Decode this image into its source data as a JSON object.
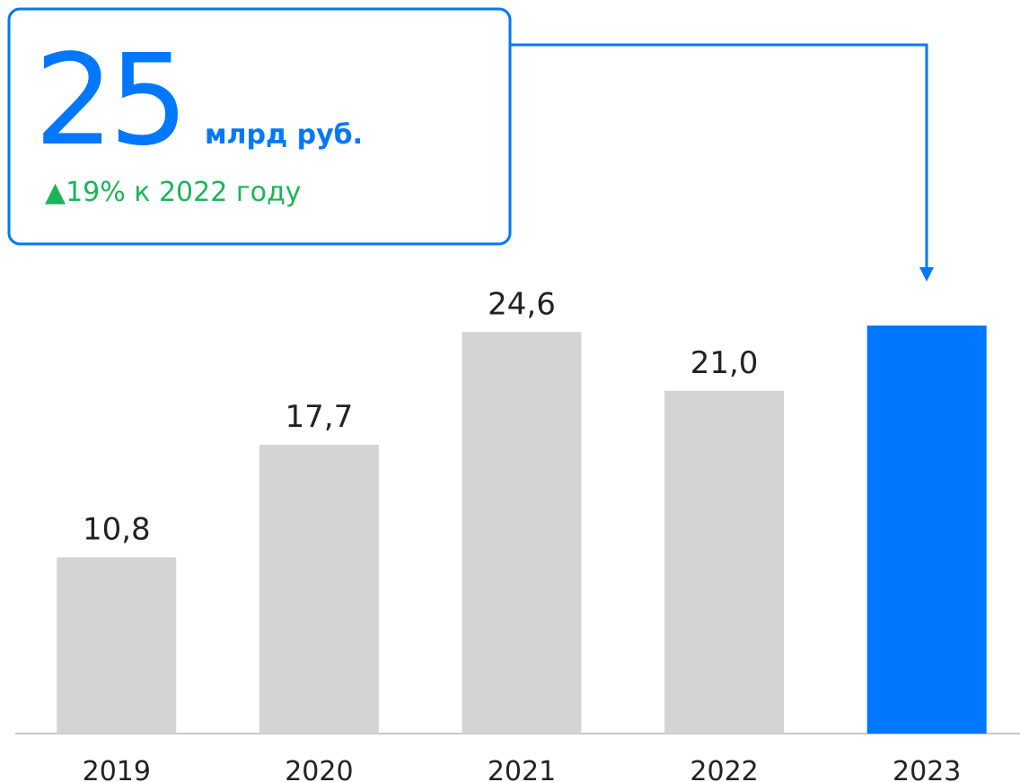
{
  "chart_data": {
    "type": "bar",
    "categories": [
      "2019",
      "2020",
      "2021",
      "2022",
      "2023"
    ],
    "values": [
      10.8,
      17.7,
      24.6,
      21.0,
      25
    ],
    "value_labels": [
      "10,8",
      "17,7",
      "24,6",
      "21,0",
      "25"
    ],
    "colors": [
      "#d4d4d4",
      "#d4d4d4",
      "#d4d4d4",
      "#d4d4d4",
      "#0077ff"
    ],
    "ylim": [
      0,
      25
    ],
    "annotations": [
      "млрд руб.",
      "▲19% к 2022 году"
    ]
  }
}
